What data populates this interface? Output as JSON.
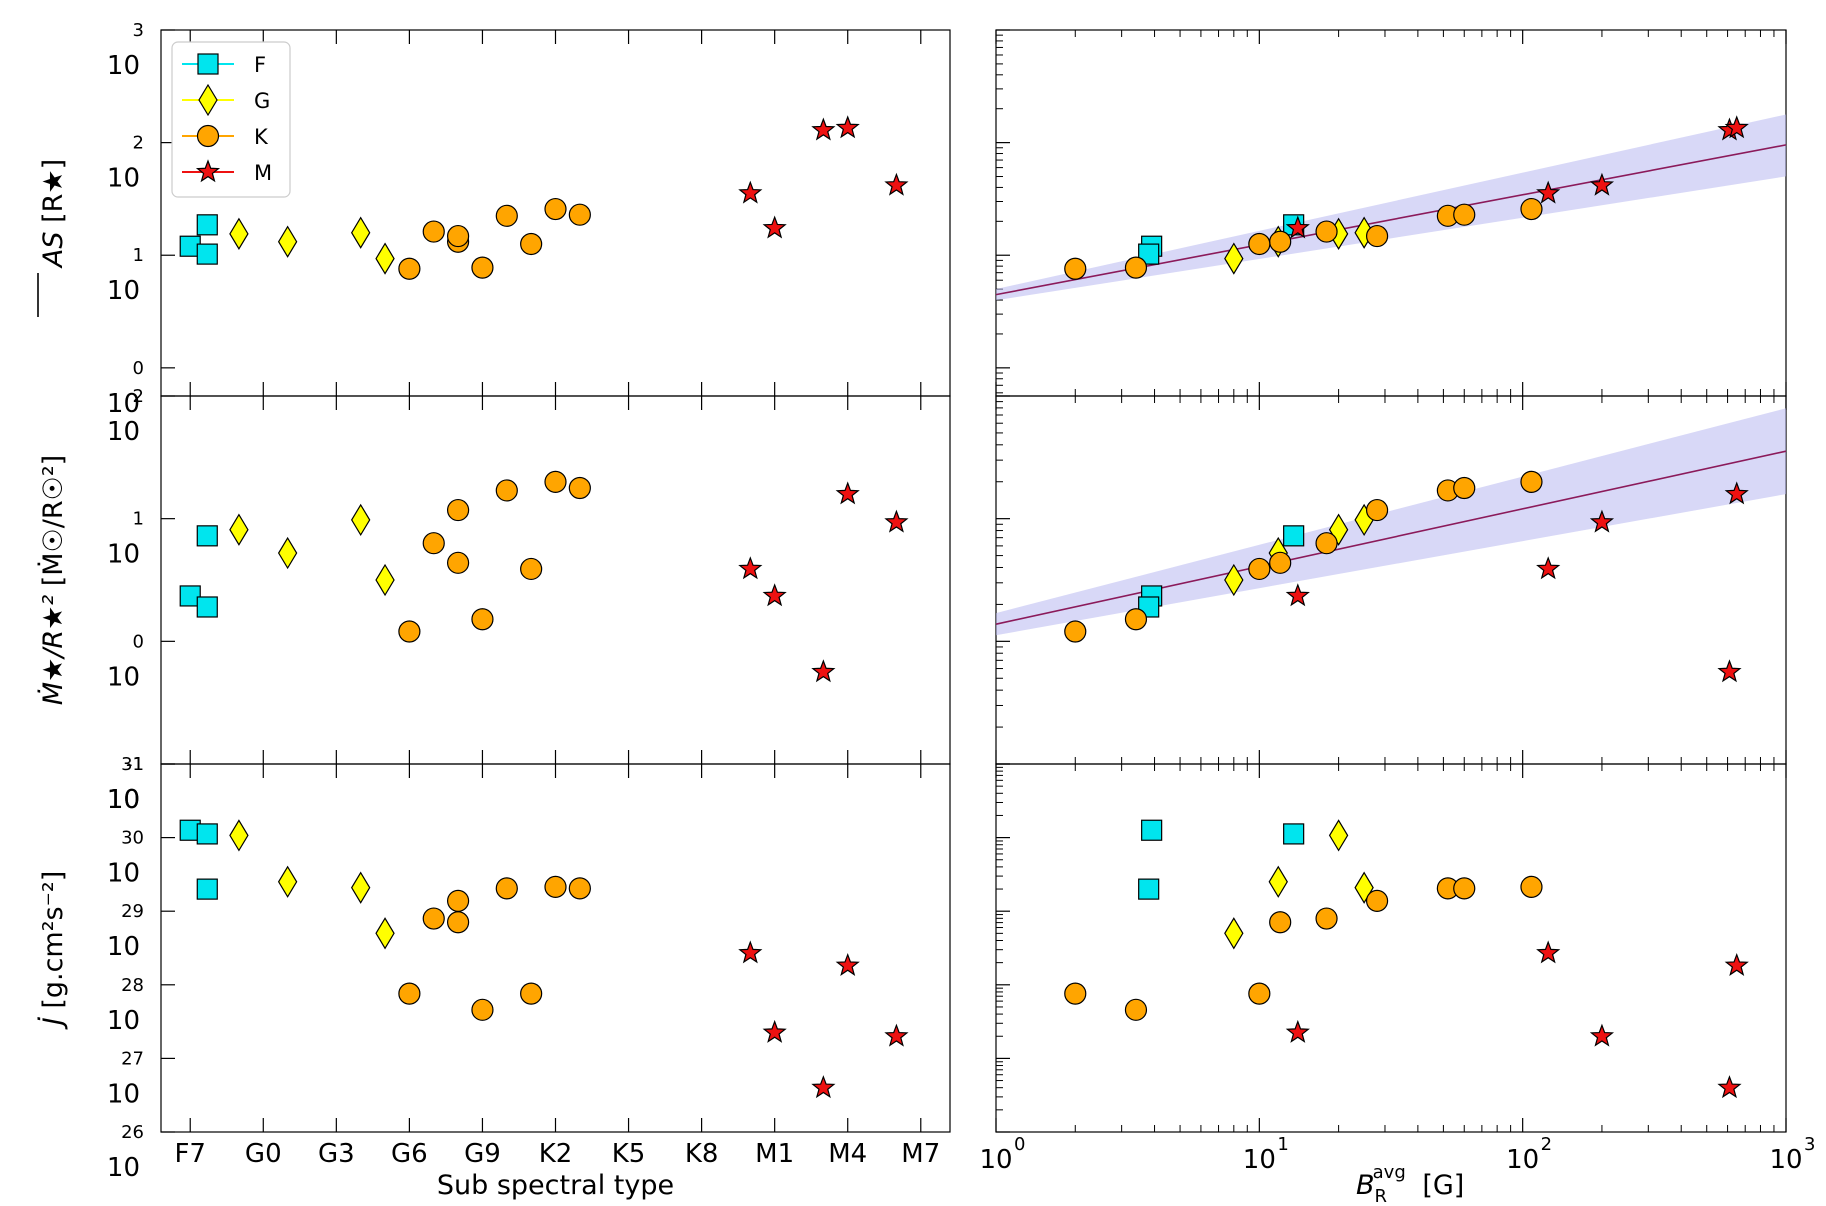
{
  "chart_data": {
    "type": "scatter",
    "legend": {
      "placement": "top-left",
      "entries": [
        {
          "name": "F",
          "marker": "square",
          "color": "#00e5ee"
        },
        {
          "name": "G",
          "marker": "diamond",
          "color": "#ffff00"
        },
        {
          "name": "K",
          "marker": "circle",
          "color": "#ffa500"
        },
        {
          "name": "M",
          "marker": "star",
          "color": "#ee1111"
        }
      ]
    },
    "x_left": {
      "label": "Sub spectral type",
      "ticks": [
        "F7",
        "G0",
        "G3",
        "G6",
        "G9",
        "K2",
        "K5",
        "K8",
        "M1",
        "M4",
        "M7"
      ],
      "range": [
        -0.4,
        10.4
      ]
    },
    "x_right": {
      "label": "B_R^avg [G]",
      "label_base": "B",
      "label_sub": "R",
      "label_sup": "avg",
      "label_unit": "[G]",
      "scale": "log",
      "range_exp": [
        0,
        3
      ],
      "tick_base": "10",
      "tick_exps": [
        "0",
        "1",
        "2",
        "3"
      ]
    },
    "panels": [
      {
        "id": "AS",
        "ylabel": "AS [R★]",
        "ylabel_main": "AS",
        "ylabel_unit": " [R★]",
        "scale": "log",
        "yrange_exp": [
          -0.25,
          3
        ],
        "tick_base": "10",
        "tick_exps": [
          "0",
          "1",
          "2",
          "3"
        ],
        "fit": {
          "exp_at_x0": 0.65,
          "exp_at_x3": 1.98,
          "band_low": [
            0.6,
            1.7
          ],
          "band_high": [
            0.7,
            2.25
          ]
        }
      },
      {
        "id": "Mdot",
        "ylabel": "Ṁ★/R★² [Ṁ☉/R☉²]",
        "ylabel_main": "Ṁ★/R★²",
        "ylabel_unit": " [Ṁ☉/R☉²]",
        "scale": "log",
        "yrange_exp": [
          -1,
          2
        ],
        "tick_base": "10",
        "tick_exps": [
          "-1",
          "0",
          "1",
          "2"
        ],
        "fit": {
          "exp_at_x0": 0.14,
          "exp_at_x3": 1.55,
          "band_low": [
            0.05,
            1.2
          ],
          "band_high": [
            0.23,
            1.9
          ]
        }
      },
      {
        "id": "Jdot",
        "ylabel": "J̇ [g.cm²s⁻²]",
        "ylabel_main": "J̇",
        "ylabel_unit": " [g.cm²s⁻²]",
        "scale": "log",
        "yrange_exp": [
          26,
          31
        ],
        "tick_base": "10",
        "tick_exps": [
          "26",
          "27",
          "28",
          "29",
          "30",
          "31"
        ]
      }
    ],
    "stars": [
      {
        "type": "F",
        "sub": 0.0,
        "B": 3.9,
        "AS": 1.08,
        "Mdot": 0.37,
        "Jdot": 30.1
      },
      {
        "type": "F",
        "sub": 0.7,
        "B": 3.8,
        "AS": 1.01,
        "Mdot": 0.28,
        "Jdot": 29.3
      },
      {
        "type": "F",
        "sub": 0.7,
        "B": 13.5,
        "AS": 1.27,
        "Mdot": 0.86,
        "Jdot": 30.05
      },
      {
        "type": "G",
        "sub": 2.0,
        "B": 20.0,
        "AS": 1.19,
        "Mdot": 0.91,
        "Jdot": 30.03
      },
      {
        "type": "G",
        "sub": 4.0,
        "B": 11.8,
        "AS": 1.12,
        "Mdot": 0.72,
        "Jdot": 29.4
      },
      {
        "type": "G",
        "sub": 7.0,
        "B": 25.0,
        "AS": 1.2,
        "Mdot": 0.99,
        "Jdot": 29.32
      },
      {
        "type": "G",
        "sub": 8.0,
        "B": 8.0,
        "AS": 0.97,
        "Mdot": 0.5,
        "Jdot": 28.7
      },
      {
        "type": "K",
        "sub": 9.0,
        "B": 2.0,
        "AS": 0.88,
        "Mdot": 0.08,
        "Jdot": 27.88
      },
      {
        "type": "K",
        "sub": 10.0,
        "B": 18.0,
        "AS": 1.21,
        "Mdot": 0.8,
        "Jdot": 28.9
      },
      {
        "type": "K",
        "sub": 11.0,
        "B": 12.0,
        "AS": 1.12,
        "Mdot": 0.64,
        "Jdot": 28.85
      },
      {
        "type": "K",
        "sub": 11.0,
        "B": 28.0,
        "AS": 1.17,
        "Mdot": 1.07,
        "Jdot": 29.14
      },
      {
        "type": "K",
        "sub": 12.0,
        "B": 3.4,
        "AS": 0.89,
        "Mdot": 0.18,
        "Jdot": 27.66
      },
      {
        "type": "K",
        "sub": 13.0,
        "B": 52.0,
        "AS": 1.35,
        "Mdot": 1.23,
        "Jdot": 29.31
      },
      {
        "type": "K",
        "sub": 14.0,
        "B": 10.0,
        "AS": 1.1,
        "Mdot": 0.59,
        "Jdot": 27.88
      },
      {
        "type": "K",
        "sub": 15.0,
        "B": 108.0,
        "AS": 1.41,
        "Mdot": 1.3,
        "Jdot": 29.33
      },
      {
        "type": "K",
        "sub": 16.0,
        "B": 60.0,
        "AS": 1.36,
        "Mdot": 1.25,
        "Jdot": 29.31
      },
      {
        "type": "M",
        "sub": 23.0,
        "B": 125.0,
        "AS": 1.55,
        "Mdot": 0.59,
        "Jdot": 28.43
      },
      {
        "type": "M",
        "sub": 24.0,
        "B": 14.0,
        "AS": 1.24,
        "Mdot": 0.37,
        "Jdot": 27.35
      },
      {
        "type": "M",
        "sub": 26.0,
        "B": 610.0,
        "AS": 2.11,
        "Mdot": -0.25,
        "Jdot": 26.6
      },
      {
        "type": "M",
        "sub": 27.0,
        "B": 650.0,
        "AS": 2.13,
        "Mdot": 1.2,
        "Jdot": 28.26
      },
      {
        "type": "M",
        "sub": 29.0,
        "B": 200.0,
        "AS": 1.62,
        "Mdot": 0.97,
        "Jdot": 27.3
      }
    ]
  }
}
